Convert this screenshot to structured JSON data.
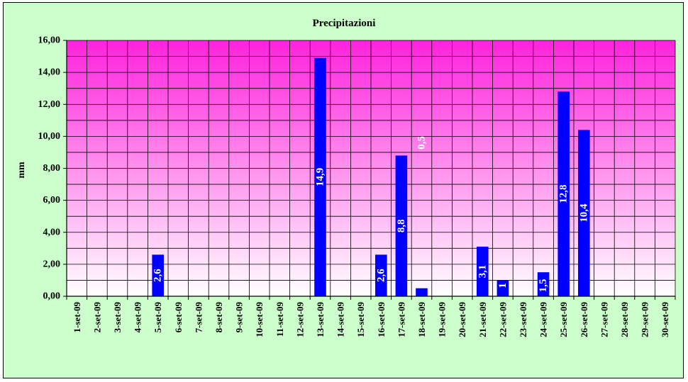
{
  "chart_data": {
    "type": "bar",
    "title": "Precipitazioni",
    "xlabel": "",
    "ylabel": "mm",
    "ylim": [
      0,
      16
    ],
    "y_ticks": [
      "0,00",
      "2,00",
      "4,00",
      "6,00",
      "8,00",
      "10,00",
      "12,00",
      "14,00",
      "16,00"
    ],
    "grid": true,
    "legend": "none",
    "categories": [
      "1-set-09",
      "2-set-09",
      "3-set-09",
      "4-set-09",
      "5-set-09",
      "6-set-09",
      "7-set-09",
      "8-set-09",
      "9-set-09",
      "10-set-09",
      "11-set-09",
      "12-set-09",
      "13-set-09",
      "14-set-09",
      "15-set-09",
      "16-set-09",
      "17-set-09",
      "18-set-09",
      "19-set-09",
      "20-set-09",
      "21-set-09",
      "22-set-09",
      "23-set-09",
      "24-set-09",
      "25-set-09",
      "26-set-09",
      "27-set-09",
      "28-set-09",
      "29-set-09",
      "30-set-09"
    ],
    "values": [
      0,
      0,
      0,
      0,
      2.6,
      0,
      0,
      0,
      0,
      0,
      0,
      0,
      14.9,
      0,
      0,
      2.6,
      8.8,
      0.5,
      0,
      0,
      3.1,
      1,
      0,
      1.5,
      12.8,
      10.4,
      0,
      0,
      0,
      0
    ],
    "data_labels": [
      "",
      "",
      "",
      "",
      "2,6",
      "",
      "",
      "",
      "",
      "",
      "",
      "",
      "14,9",
      "",
      "",
      "2,6",
      "8,8",
      "0,5",
      "",
      "",
      "3,1",
      "1",
      "",
      "1,5",
      "12,8",
      "10,4",
      "",
      "",
      "",
      ""
    ],
    "colors": {
      "background": "#ccffcc",
      "plot_top": "#ff22dd",
      "plot_bottom": "#ffffff",
      "bar": "#0000ff",
      "label": "#ffffff"
    }
  }
}
